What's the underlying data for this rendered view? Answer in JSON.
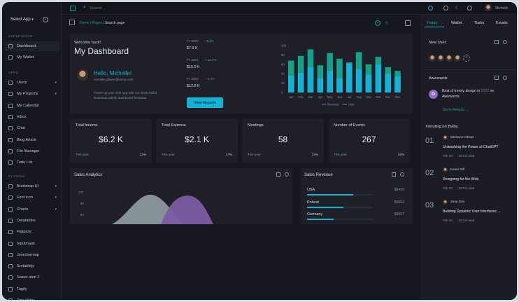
{
  "sidebar": {
    "select_app": "Select App",
    "sections": {
      "experience": "EXPERIENCE",
      "apps": "APPS",
      "plugins": "PLUGINS"
    },
    "experience_items": [
      {
        "label": "Dashboard"
      },
      {
        "label": "My Wallet"
      }
    ],
    "apps_items": [
      {
        "label": "Users",
        "caret": true
      },
      {
        "label": "My Project's",
        "caret": true
      },
      {
        "label": "My Calendar"
      },
      {
        "label": "Inbox"
      },
      {
        "label": "Chat"
      },
      {
        "label": "Blog Article"
      },
      {
        "label": "File Manager"
      },
      {
        "label": "Todo List"
      }
    ],
    "plugin_items": [
      {
        "label": "Bootstrap UI",
        "caret": true
      },
      {
        "label": "Font icon",
        "caret": true
      },
      {
        "label": "Charts",
        "caret": true
      },
      {
        "label": "Datatables"
      },
      {
        "label": "Flatpickr"
      },
      {
        "label": "Inputmask"
      },
      {
        "label": "Jsvectormap"
      },
      {
        "label": "Sortablejs"
      },
      {
        "label": "Sweet alert 2"
      },
      {
        "label": "Tagify"
      },
      {
        "label": "Tiny slider"
      }
    ]
  },
  "topbar": {
    "search_placeholder": "Search...",
    "user_name": "Michelle"
  },
  "breadcrumb": {
    "home": "Home",
    "pages": "Pages",
    "current": "Search page"
  },
  "welcome": {
    "greeting": "Welcome back!",
    "title": "My Dashboard",
    "hello": "Hello, Michelle!",
    "email": "michelle.glover@bsmp.com",
    "blurb1": "Power up your web app with our sleek Bvilta",
    "blurb2": "Bootstrap admin dashboard template.",
    "button": "View Reports",
    "fy": [
      {
        "label": "FY 2020",
        "change": "+8.2%",
        "value": "$7.9 K",
        "color": "#2fbf71"
      },
      {
        "label": "FY 2021",
        "change": "+ 12.7%",
        "value": "$15.0 K",
        "color": "#2fbf71"
      },
      {
        "label": "FY 2022",
        "change": "+ 6.4%",
        "value": "$12.8 K",
        "color": "#e05757"
      }
    ]
  },
  "chart_data": {
    "type": "bar",
    "categories": [
      "Jan",
      "Feb",
      "Mar",
      "Apr",
      "May",
      "Jun",
      "Jul",
      "Aug",
      "Sep",
      "Oct",
      "Nov",
      "Dec"
    ],
    "yticks": [
      "100",
      "80",
      "60",
      "40",
      "20",
      "0"
    ],
    "ylim": [
      0,
      100
    ],
    "series": [
      {
        "name": "Revenue",
        "color": "#16a08b",
        "values": [
          68,
          78,
          92,
          58,
          84,
          72,
          64,
          86,
          60,
          76,
          54,
          46
        ]
      },
      {
        "name": "Cost",
        "color": "#14b3d6",
        "values": [
          36,
          42,
          54,
          30,
          46,
          30,
          62,
          50,
          38,
          60,
          40,
          34
        ]
      }
    ]
  },
  "stats": [
    {
      "title": "Total Income",
      "value": "$6.2 K",
      "period": "This year",
      "pct": "22%"
    },
    {
      "title": "Total Expense",
      "value": "$2.1 K",
      "period": "This year",
      "pct": "17%"
    },
    {
      "title": "Meetings",
      "value": "58",
      "period": "This year",
      "pct": "34%"
    },
    {
      "title": "Number of Events",
      "value": "267",
      "period": "This year",
      "pct": "19%"
    }
  ],
  "sales_analytics": {
    "title": "Sales Analytics",
    "yticks": [
      "100",
      "80",
      "60"
    ]
  },
  "sales_revenue": {
    "title": "Sales Revenue",
    "rows": [
      {
        "country": "USA",
        "value": "$6425",
        "fill": 0.7
      },
      {
        "country": "Poland",
        "value": "$5562",
        "fill": 0.55
      },
      {
        "country": "Germany",
        "value": "$4657",
        "fill": 0.4
      }
    ]
  },
  "right": {
    "tabs": [
      "Today",
      "Wallet",
      "Tasks",
      "Emails"
    ],
    "new_user": "New User",
    "awards": "Awwwards",
    "award_text1": "Best of trendy design in",
    "award_year": "2022",
    "award_text2": "on",
    "award_text3": "Awwwards",
    "go_awards": "Go to Awards",
    "trending_title": "Trending on Bvilta",
    "trending": [
      {
        "num": "01",
        "author": "MichaAe Glover",
        "title": "Unleashing the Power of ChatGPT",
        "date": "Feb 20",
        "read": "10 min read"
      },
      {
        "num": "02",
        "author": "Kevin Gill",
        "title": "Designing for the Web",
        "date": "Feb 20",
        "read": "10 min read"
      },
      {
        "num": "03",
        "author": "Jony Doe",
        "title": "Building Dynamic User Interfaces ...",
        "date": "Feb 20",
        "read": "10 min read"
      }
    ]
  },
  "colors": {
    "accent": "#14b3d6",
    "green": "#16a08b",
    "bg": "#17181f",
    "card": "#1e1f27"
  }
}
